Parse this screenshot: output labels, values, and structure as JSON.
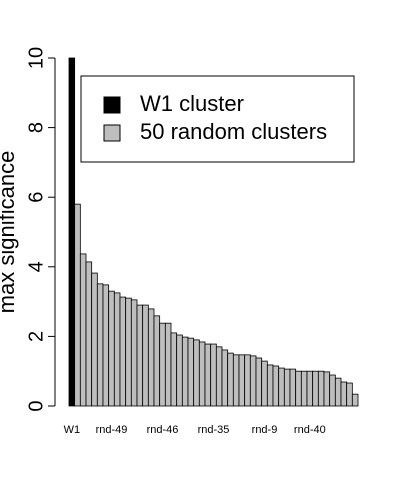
{
  "chart_data": {
    "type": "bar",
    "y_label": "max significance",
    "categories": [
      "W1",
      null,
      null,
      null,
      null,
      null,
      null,
      "rnd-49",
      null,
      null,
      null,
      null,
      null,
      null,
      null,
      null,
      "rnd-46",
      null,
      null,
      null,
      null,
      null,
      null,
      null,
      null,
      "rnd-35",
      null,
      null,
      null,
      null,
      null,
      null,
      null,
      null,
      "rnd-9",
      null,
      null,
      null,
      null,
      null,
      null,
      null,
      "rnd-40",
      null,
      null,
      null,
      null,
      null,
      null,
      null,
      null
    ],
    "series": [
      {
        "name": "W1 cluster",
        "color": "#000000",
        "values": [
          10,
          null,
          null,
          null,
          null,
          null,
          null,
          null,
          null,
          null,
          null,
          null,
          null,
          null,
          null,
          null,
          null,
          null,
          null,
          null,
          null,
          null,
          null,
          null,
          null,
          null,
          null,
          null,
          null,
          null,
          null,
          null,
          null,
          null,
          null,
          null,
          null,
          null,
          null,
          null,
          null,
          null,
          null,
          null,
          null,
          null,
          null,
          null,
          null,
          null,
          null
        ]
      },
      {
        "name": "50 random clusters",
        "color": "#bebebe",
        "values": [
          null,
          5.8,
          4.37,
          4.14,
          3.82,
          3.51,
          3.48,
          3.3,
          3.25,
          3.13,
          3.1,
          3.05,
          2.9,
          2.9,
          2.79,
          2.59,
          2.38,
          2.38,
          2.1,
          2.04,
          1.98,
          1.95,
          1.9,
          1.84,
          1.78,
          1.78,
          1.7,
          1.61,
          1.52,
          1.47,
          1.47,
          1.47,
          1.44,
          1.38,
          1.29,
          1.18,
          1.15,
          1.09,
          1.06,
          1.06,
          1.0,
          1.0,
          1.0,
          1.0,
          1.0,
          0.98,
          0.89,
          0.8,
          0.69,
          0.66,
          0.34
        ]
      }
    ],
    "ylim": [
      0,
      10
    ],
    "yticks": [
      0,
      2,
      4,
      6,
      8,
      10
    ]
  }
}
